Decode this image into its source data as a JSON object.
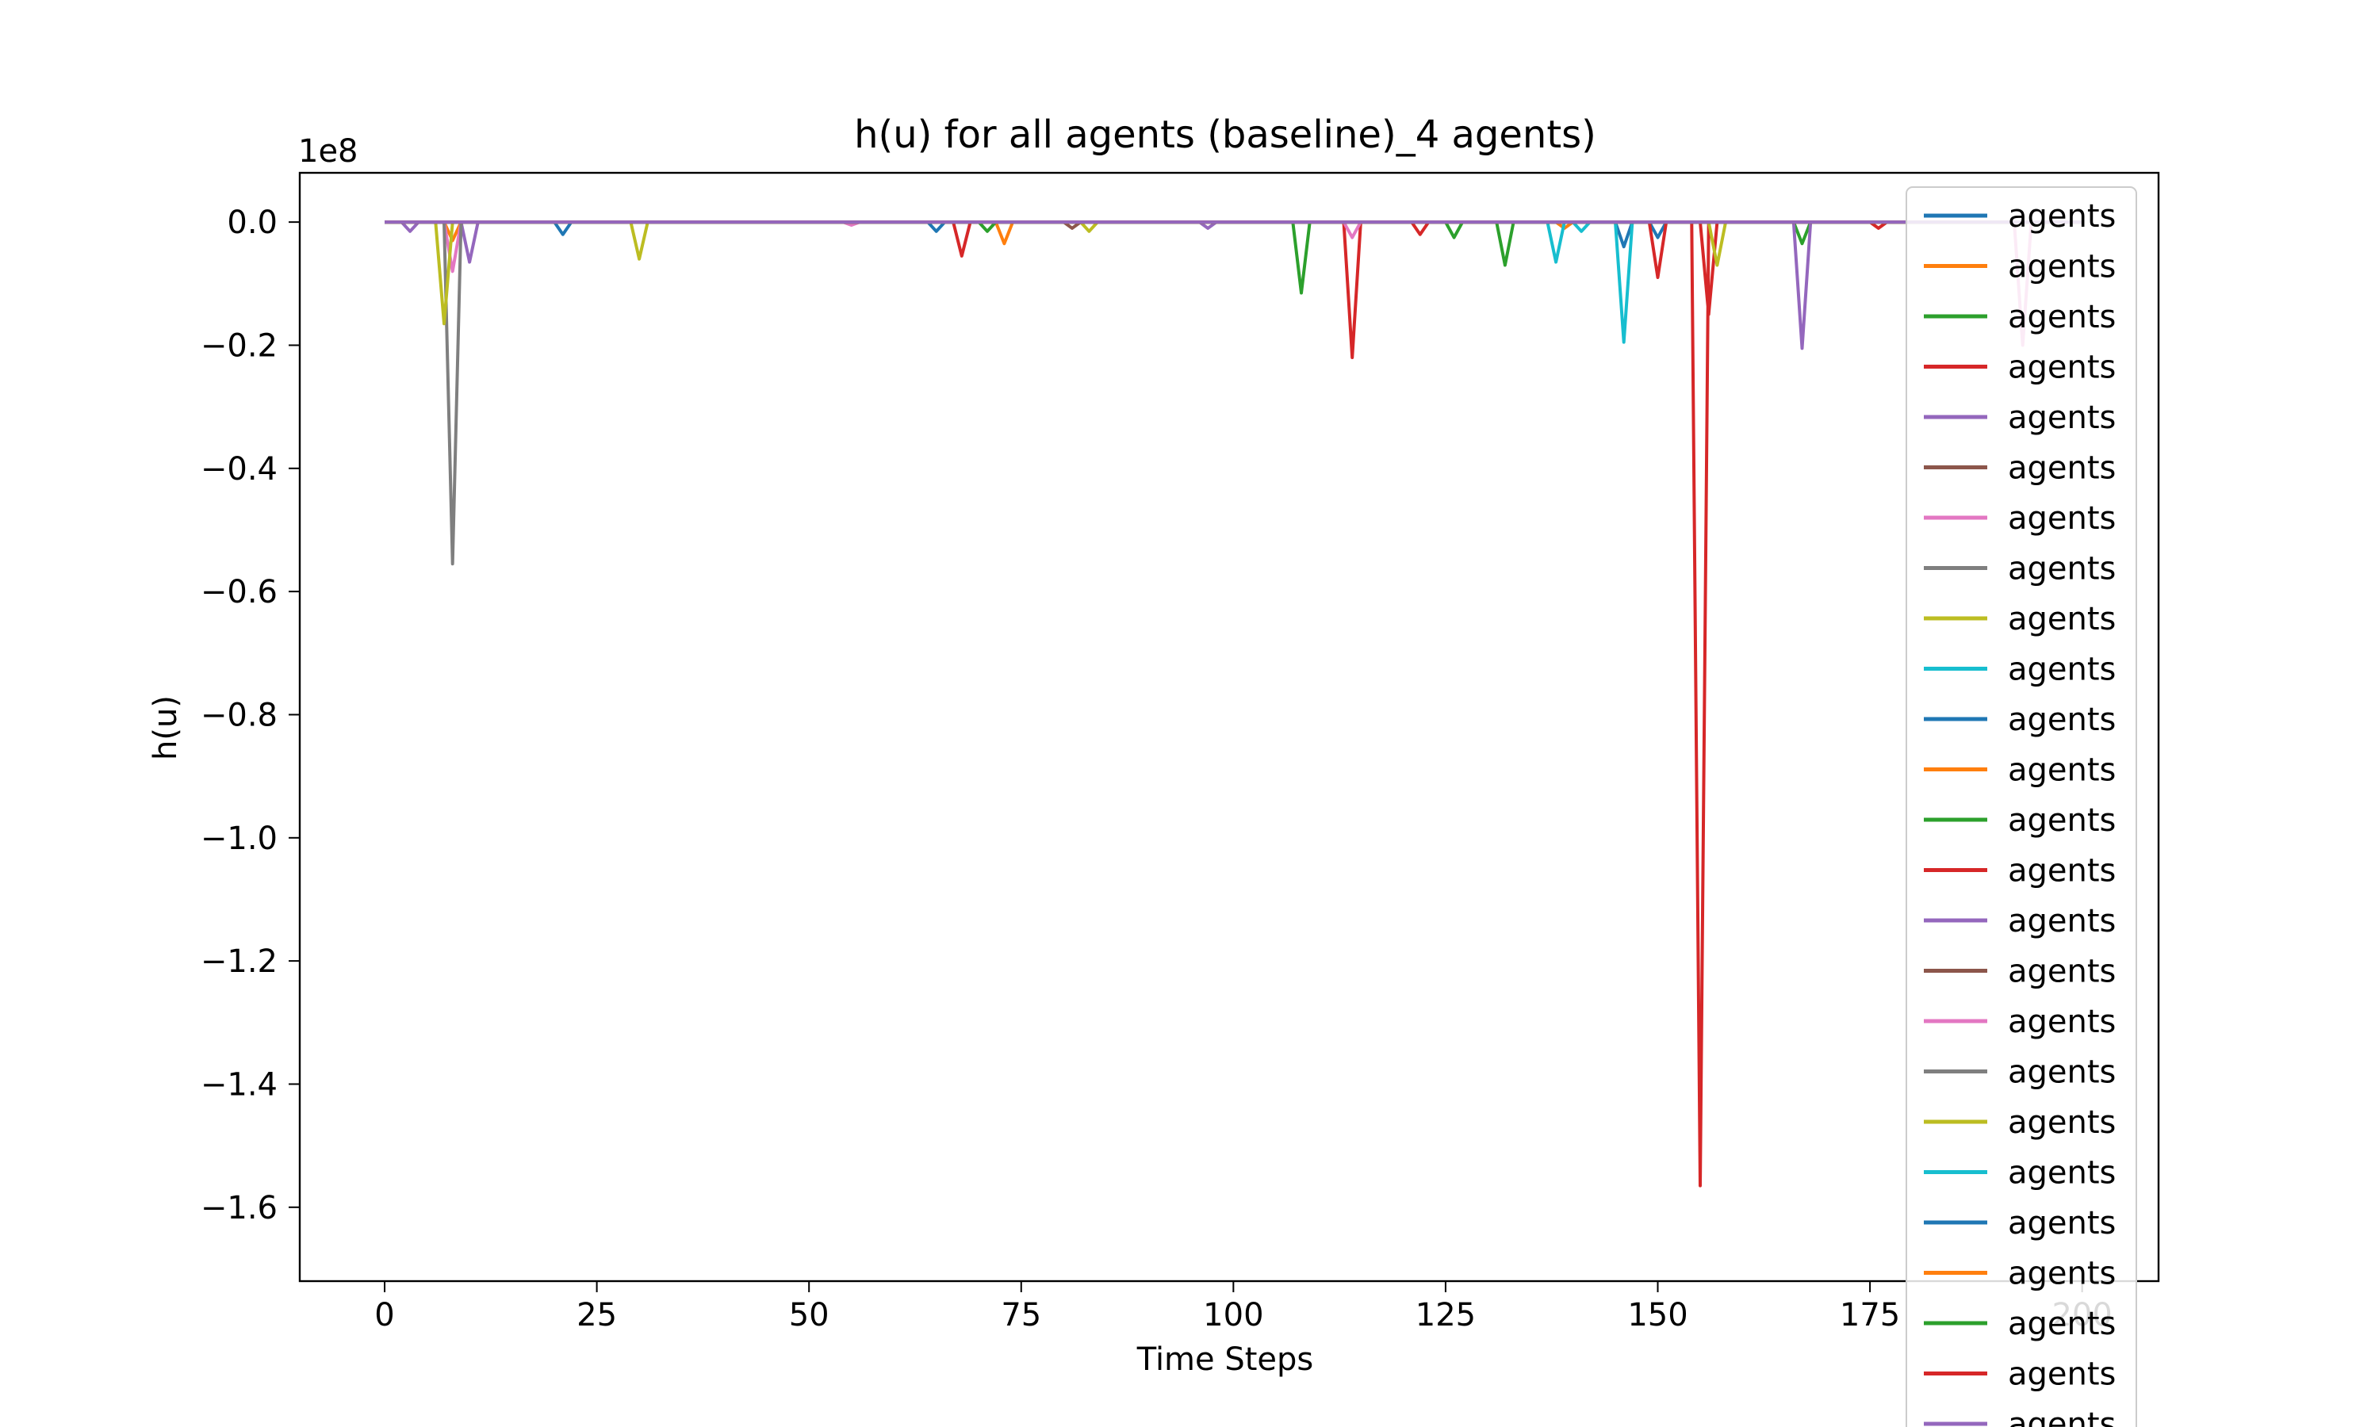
{
  "chart_data": {
    "type": "line",
    "title": "h(u) for all agents (baseline)_4 agents)",
    "xlabel": "Time Steps",
    "ylabel": "h(u)",
    "offset_label": "1e8",
    "xlim": [
      -10,
      209
    ],
    "ylim": [
      -1.72,
      0.08
    ],
    "xticks": [
      0,
      25,
      50,
      75,
      100,
      125,
      150,
      175,
      200
    ],
    "xtick_labels": [
      "0",
      "25",
      "50",
      "75",
      "100",
      "125",
      "150",
      "175",
      "200"
    ],
    "yticks": [
      0.0,
      -0.2,
      -0.4,
      -0.6,
      -0.8,
      -1.0,
      -1.2,
      -1.4,
      -1.6
    ],
    "ytick_labels": [
      "0.0",
      "−0.2",
      "−0.4",
      "−0.6",
      "−0.8",
      "−1.0",
      "−1.2",
      "−1.4",
      "−1.6"
    ],
    "y_unit_multiplier": "1e8",
    "legend_position": "top-right (overflowing below the axes)",
    "grid": false,
    "palette": [
      "#1f77b4",
      "#ff7f0e",
      "#2ca02c",
      "#d62728",
      "#9467bd",
      "#8c564b",
      "#e377c2",
      "#7f7f7f",
      "#bcbd22",
      "#17becf"
    ],
    "series": [
      {
        "name": "agents",
        "color": "#1f77b4",
        "spikes": [
          [
            21,
            -0.02
          ],
          [
            65,
            -0.015
          ],
          [
            146,
            -0.04
          ],
          [
            150,
            -0.025
          ]
        ]
      },
      {
        "name": "agents",
        "color": "#ff7f0e",
        "spikes": [
          [
            8,
            -0.03
          ],
          [
            73,
            -0.035
          ],
          [
            139,
            -0.01
          ]
        ]
      },
      {
        "name": "agents",
        "color": "#2ca02c",
        "spikes": [
          [
            71,
            -0.015
          ],
          [
            108,
            -0.115
          ],
          [
            126,
            -0.025
          ],
          [
            132,
            -0.07
          ],
          [
            167,
            -0.035
          ]
        ]
      },
      {
        "name": "agents",
        "color": "#d62728",
        "spikes": [
          [
            68,
            -0.055
          ],
          [
            114,
            -0.22
          ],
          [
            122,
            -0.02
          ],
          [
            150,
            -0.09
          ],
          [
            155,
            -1.565
          ],
          [
            156,
            -0.15
          ],
          [
            176,
            -0.01
          ]
        ]
      },
      {
        "name": "agents",
        "color": "#9467bd",
        "spikes": [
          [
            3,
            -0.015
          ],
          [
            10,
            -0.065
          ],
          [
            97,
            -0.01
          ],
          [
            167,
            -0.205
          ]
        ]
      },
      {
        "name": "agents",
        "color": "#8c564b",
        "spikes": [
          [
            81,
            -0.01
          ]
        ]
      },
      {
        "name": "agents",
        "color": "#e377c2",
        "spikes": [
          [
            8,
            -0.08
          ],
          [
            55,
            -0.005
          ],
          [
            114,
            -0.025
          ],
          [
            193,
            -0.2
          ]
        ]
      },
      {
        "name": "agents",
        "color": "#7f7f7f",
        "spikes": [
          [
            8,
            -0.555
          ]
        ]
      },
      {
        "name": "agents",
        "color": "#bcbd22",
        "spikes": [
          [
            7,
            -0.165
          ],
          [
            30,
            -0.06
          ],
          [
            83,
            -0.015
          ],
          [
            157,
            -0.07
          ]
        ]
      },
      {
        "name": "agents",
        "color": "#17becf",
        "spikes": [
          [
            138,
            -0.065
          ],
          [
            141,
            -0.015
          ],
          [
            146,
            -0.195
          ]
        ]
      },
      {
        "name": "agents",
        "color": "#1f77b4",
        "spikes": []
      },
      {
        "name": "agents",
        "color": "#ff7f0e",
        "spikes": []
      },
      {
        "name": "agents",
        "color": "#2ca02c",
        "spikes": []
      },
      {
        "name": "agents",
        "color": "#d62728",
        "spikes": []
      },
      {
        "name": "agents",
        "color": "#9467bd",
        "spikes": []
      },
      {
        "name": "agents",
        "color": "#8c564b",
        "spikes": []
      },
      {
        "name": "agents",
        "color": "#e377c2",
        "spikes": []
      },
      {
        "name": "agents",
        "color": "#7f7f7f",
        "spikes": []
      },
      {
        "name": "agents",
        "color": "#bcbd22",
        "spikes": []
      },
      {
        "name": "agents",
        "color": "#17becf",
        "spikes": []
      },
      {
        "name": "agents",
        "color": "#1f77b4",
        "spikes": []
      },
      {
        "name": "agents",
        "color": "#ff7f0e",
        "spikes": []
      },
      {
        "name": "agents",
        "color": "#2ca02c",
        "spikes": []
      },
      {
        "name": "agents",
        "color": "#d62728",
        "spikes": []
      },
      {
        "name": "agents",
        "color": "#9467bd",
        "spikes": []
      }
    ]
  }
}
